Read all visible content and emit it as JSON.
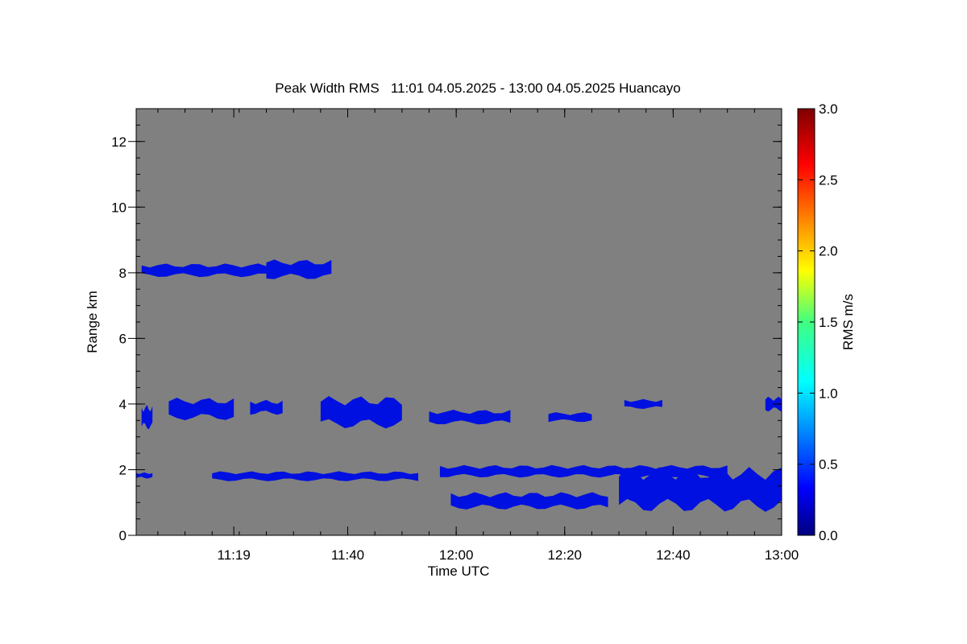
{
  "chart_data": {
    "type": "heatmap",
    "title": "Peak Width RMS   11:01 04.05.2025 - 13:00 04.05.2025 Huancayo",
    "xlabel": "Time UTC",
    "ylabel": "Range km",
    "x_range": [
      "11:01",
      "13:00"
    ],
    "x_tick_labels": [
      "11:19",
      "11:40",
      "12:00",
      "12:20",
      "12:40",
      "13:00"
    ],
    "ylim": [
      0,
      13
    ],
    "y_tick_labels": [
      "0",
      "2",
      "4",
      "6",
      "8",
      "10",
      "12"
    ],
    "colorbar": {
      "label": "RMS m/s",
      "range": [
        0.0,
        3.0
      ],
      "tick_labels": [
        "0.0",
        "0.5",
        "1.0",
        "1.5",
        "2.0",
        "2.5",
        "3.0"
      ]
    },
    "colors": {
      "background_no_data": "#808080",
      "echo": "#0010e0",
      "echo_dark": "#0008b8"
    },
    "echo_regions": [
      {
        "t_start": "11:02",
        "t_end": "11:25",
        "range_km": [
          7.8,
          8.35
        ],
        "rms_ms": 0.3
      },
      {
        "t_start": "11:25",
        "t_end": "11:37",
        "range_km": [
          7.7,
          8.5
        ],
        "rms_ms": 0.3
      },
      {
        "t_start": "11:02",
        "t_end": "11:04",
        "range_km": [
          3.1,
          4.1
        ],
        "rms_ms": 0.3
      },
      {
        "t_start": "11:07",
        "t_end": "11:19",
        "range_km": [
          3.4,
          4.3
        ],
        "rms_ms": 0.3
      },
      {
        "t_start": "11:22",
        "t_end": "11:28",
        "range_km": [
          3.6,
          4.2
        ],
        "rms_ms": 0.3
      },
      {
        "t_start": "11:35",
        "t_end": "11:50",
        "range_km": [
          3.1,
          4.4
        ],
        "rms_ms": 0.3
      },
      {
        "t_start": "11:55",
        "t_end": "12:10",
        "range_km": [
          3.3,
          3.9
        ],
        "rms_ms": 0.3
      },
      {
        "t_start": "12:17",
        "t_end": "12:25",
        "range_km": [
          3.4,
          3.8
        ],
        "rms_ms": 0.3
      },
      {
        "t_start": "12:31",
        "t_end": "12:38",
        "range_km": [
          3.8,
          4.2
        ],
        "rms_ms": 0.3
      },
      {
        "t_start": "12:57",
        "t_end": "13:00",
        "range_km": [
          3.7,
          4.3
        ],
        "rms_ms": 0.3
      },
      {
        "t_start": "11:01",
        "t_end": "11:04",
        "range_km": [
          1.7,
          1.95
        ],
        "rms_ms": 0.3
      },
      {
        "t_start": "11:15",
        "t_end": "11:53",
        "range_km": [
          1.6,
          2.0
        ],
        "rms_ms": 0.3
      },
      {
        "t_start": "11:57",
        "t_end": "12:50",
        "range_km": [
          1.7,
          2.2
        ],
        "rms_ms": 0.4
      },
      {
        "t_start": "12:30",
        "t_end": "13:00",
        "range_km": [
          0.5,
          2.3
        ],
        "rms_ms": 0.4
      },
      {
        "t_start": "11:59",
        "t_end": "12:28",
        "range_km": [
          0.7,
          1.4
        ],
        "rms_ms": 0.3
      }
    ]
  }
}
